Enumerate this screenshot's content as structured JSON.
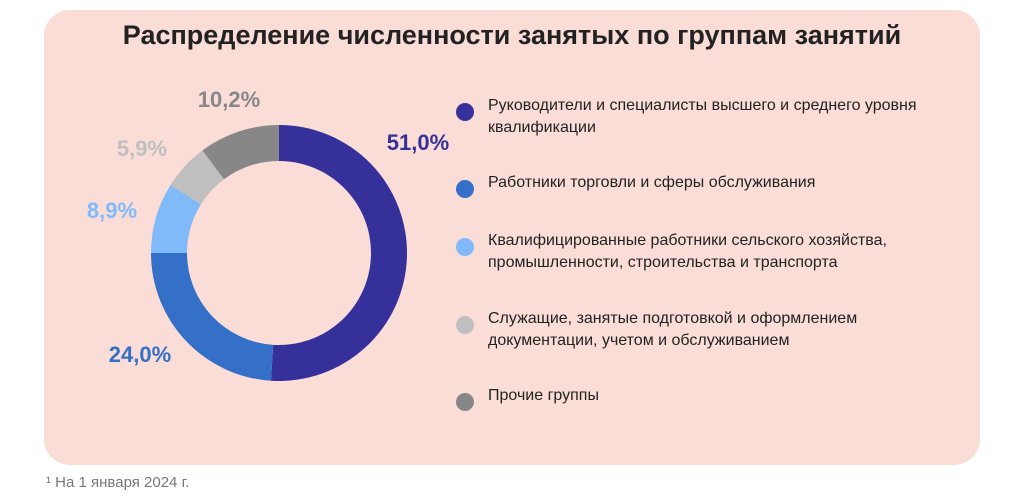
{
  "title": "Распределение численности занятых по группам занятий",
  "footnote": "¹ На 1 января 2024 г.",
  "chart_data": {
    "type": "pie",
    "donut": true,
    "title": "Распределение численности занятых по группам занятий",
    "categories": [
      "Руководители и специалисты высшего и среднего уровня квалификации",
      "Работники торговли и сферы обслуживания",
      "Квалифицированные работники сельского хозяйства, промышленности, строительства и транспорта",
      "Служащие, занятые подготовкой и оформлением документации, учетом и обслуживанием",
      "Прочие группы"
    ],
    "values": [
      51.0,
      24.0,
      8.9,
      5.9,
      10.2
    ],
    "labels": [
      "51,0%",
      "24,0%",
      "8,9%",
      "5,9%",
      "10,2%"
    ],
    "colors": [
      "#35309a",
      "#3470c8",
      "#80baf8",
      "#bfbfbf",
      "#878787"
    ],
    "legend_position": "right"
  }
}
